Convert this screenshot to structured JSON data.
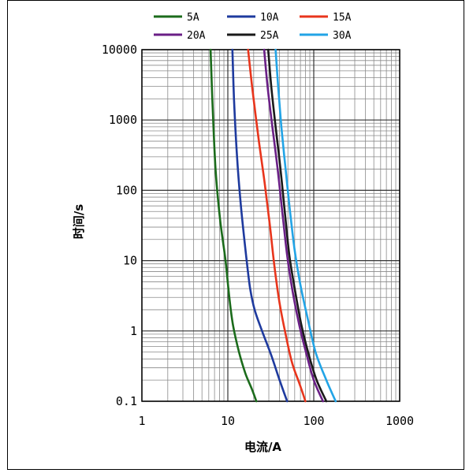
{
  "chart_data": {
    "type": "line",
    "title": "",
    "xlabel": "电流/A",
    "ylabel": "时间/s",
    "xscale": "log",
    "yscale": "log",
    "xlim": [
      1,
      1000
    ],
    "ylim": [
      0.1,
      10000
    ],
    "xticks": [
      {
        "value": 1,
        "label": "1"
      },
      {
        "value": 10,
        "label": "10"
      },
      {
        "value": 100,
        "label": "100"
      },
      {
        "value": 1000,
        "label": "1000"
      }
    ],
    "yticks": [
      {
        "value": 0.1,
        "label": "0.1"
      },
      {
        "value": 1,
        "label": "1"
      },
      {
        "value": 10,
        "label": "10"
      },
      {
        "value": 100,
        "label": "100"
      },
      {
        "value": 1000,
        "label": "1000"
      },
      {
        "value": 10000,
        "label": "10000"
      }
    ],
    "grid": true,
    "legend_position": "top",
    "series": [
      {
        "name": "5A",
        "color": "#1b6b1b",
        "points": [
          [
            6.3,
            10000
          ],
          [
            6.6,
            2000
          ],
          [
            7.2,
            200
          ],
          [
            8.1,
            40
          ],
          [
            9.4,
            10
          ],
          [
            10.4,
            3
          ],
          [
            11.5,
            1.2
          ],
          [
            13.5,
            0.5
          ],
          [
            16,
            0.25
          ],
          [
            19,
            0.15
          ],
          [
            21.5,
            0.1
          ]
        ]
      },
      {
        "name": "10A",
        "color": "#1e3a9e",
        "points": [
          [
            11.3,
            10000
          ],
          [
            11.8,
            2000
          ],
          [
            12.8,
            300
          ],
          [
            14.2,
            60
          ],
          [
            16.3,
            12
          ],
          [
            18.2,
            4
          ],
          [
            20.5,
            2
          ],
          [
            25,
            1
          ],
          [
            32,
            0.45
          ],
          [
            40,
            0.2
          ],
          [
            49,
            0.1
          ]
        ]
      },
      {
        "name": "15A",
        "color": "#e8351c",
        "points": [
          [
            17.2,
            10000
          ],
          [
            19.5,
            2500
          ],
          [
            23,
            500
          ],
          [
            27,
            120
          ],
          [
            31,
            30
          ],
          [
            35,
            8
          ],
          [
            40,
            2.5
          ],
          [
            47,
            0.9
          ],
          [
            56,
            0.35
          ],
          [
            68,
            0.18
          ],
          [
            80,
            0.1
          ]
        ]
      },
      {
        "name": "20A",
        "color": "#6a1f86",
        "points": [
          [
            26.5,
            10000
          ],
          [
            29,
            3000
          ],
          [
            33,
            800
          ],
          [
            38,
            200
          ],
          [
            43,
            50
          ],
          [
            49,
            12
          ],
          [
            56,
            4
          ],
          [
            68,
            1.2
          ],
          [
            83,
            0.45
          ],
          [
            100,
            0.2
          ],
          [
            128,
            0.1
          ]
        ]
      },
      {
        "name": "25A",
        "color": "#1a1a1a",
        "points": [
          [
            29.5,
            10000
          ],
          [
            32,
            3000
          ],
          [
            36,
            800
          ],
          [
            41,
            200
          ],
          [
            46,
            50
          ],
          [
            52,
            12
          ],
          [
            60,
            4
          ],
          [
            72,
            1.2
          ],
          [
            88,
            0.45
          ],
          [
            108,
            0.2
          ],
          [
            140,
            0.1
          ]
        ]
      },
      {
        "name": "30A",
        "color": "#22a4e6",
        "points": [
          [
            36,
            10000
          ],
          [
            38.5,
            3000
          ],
          [
            42,
            800
          ],
          [
            47,
            200
          ],
          [
            53,
            50
          ],
          [
            60,
            14
          ],
          [
            70,
            4.5
          ],
          [
            85,
            1.5
          ],
          [
            105,
            0.5
          ],
          [
            140,
            0.2
          ],
          [
            180,
            0.1
          ]
        ]
      }
    ]
  }
}
